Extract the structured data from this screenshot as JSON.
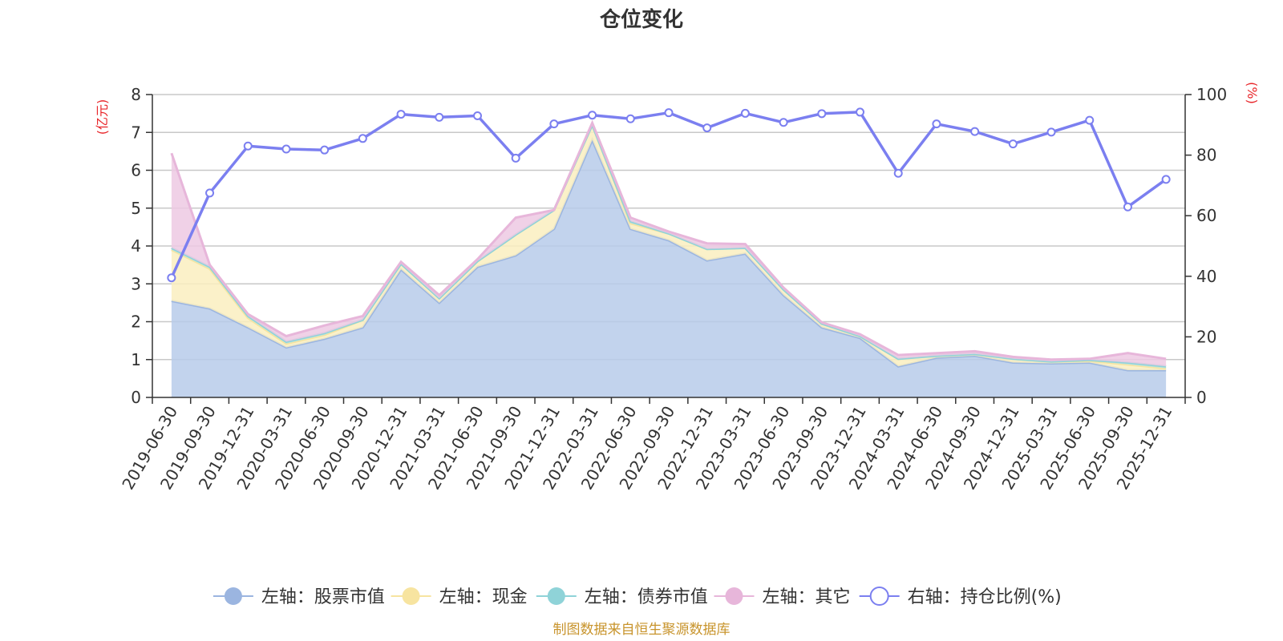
{
  "chart_data": {
    "type": "area",
    "title": "仓位变化",
    "left_axis_unit": "(亿元)",
    "right_axis_unit": "(%)",
    "left_ylim": [
      0,
      8
    ],
    "left_yticks": [
      0,
      1,
      2,
      3,
      4,
      5,
      6,
      7,
      8
    ],
    "right_ylim": [
      0,
      100
    ],
    "right_yticks": [
      0,
      20,
      40,
      60,
      80,
      100
    ],
    "categories": [
      "2019-06-30",
      "2019-09-30",
      "2019-12-31",
      "2020-03-31",
      "2020-06-30",
      "2020-09-30",
      "2020-12-31",
      "2021-03-31",
      "2021-06-30",
      "2021-09-30",
      "2021-12-31",
      "2022-03-31",
      "2022-06-30",
      "2022-09-30",
      "2022-12-31",
      "2023-03-31",
      "2023-06-30",
      "2023-09-30",
      "2023-12-31",
      "2024-03-31",
      "2024-06-30",
      "2024-09-30",
      "2024-12-31",
      "2025-03-31",
      "2025-06-30",
      "2025-09-30",
      "2025-12-31"
    ],
    "series": [
      {
        "name": "左轴：股票市值",
        "axis": "left",
        "kind": "area",
        "color": "#9bb5e0",
        "fill": "#b7cbea",
        "values": [
          2.55,
          2.35,
          1.85,
          1.32,
          1.55,
          1.85,
          3.38,
          2.5,
          3.45,
          3.75,
          4.45,
          6.8,
          4.45,
          4.15,
          3.62,
          3.8,
          2.7,
          1.85,
          1.57,
          0.82,
          1.05,
          1.1,
          0.92,
          0.9,
          0.92,
          0.72,
          0.72
        ]
      },
      {
        "name": "左轴：现金",
        "axis": "left",
        "kind": "area",
        "color": "#f7e4a0",
        "fill": "#faefc0",
        "values": [
          1.35,
          1.05,
          0.25,
          0.1,
          0.1,
          0.2,
          0.15,
          0.12,
          0.15,
          0.55,
          0.5,
          0.4,
          0.15,
          0.18,
          0.3,
          0.15,
          0.15,
          0.1,
          0.05,
          0.2,
          0.05,
          0.05,
          0.1,
          0.05,
          0.05,
          0.15,
          0.05
        ]
      },
      {
        "name": "左轴：债券市值",
        "axis": "left",
        "kind": "area",
        "color": "#8fd3d8",
        "fill": "#b8e5e8",
        "values": [
          0.05,
          0.05,
          0.05,
          0.05,
          0.05,
          0.0,
          0.0,
          0.0,
          0.0,
          0.0,
          0.0,
          0.0,
          0.05,
          0.0,
          0.0,
          0.0,
          0.0,
          0.0,
          0.0,
          0.0,
          0.0,
          0.0,
          0.0,
          0.0,
          0.02,
          0.05,
          0.05
        ]
      },
      {
        "name": "左轴：其它",
        "axis": "left",
        "kind": "area",
        "color": "#e7b6da",
        "fill": "#edc9e3",
        "values": [
          2.5,
          0.05,
          0.05,
          0.15,
          0.2,
          0.1,
          0.05,
          0.08,
          0.05,
          0.45,
          0.0,
          0.05,
          0.1,
          0.05,
          0.15,
          0.1,
          0.05,
          0.03,
          0.05,
          0.1,
          0.07,
          0.07,
          0.05,
          0.05,
          0.03,
          0.25,
          0.2
        ]
      },
      {
        "name": "右轴：持仓比例(%)",
        "axis": "right",
        "kind": "line",
        "color": "#7b7ff0",
        "values": [
          39.5,
          67.5,
          83,
          82,
          81.7,
          85.5,
          93.5,
          92.5,
          93,
          79,
          90.3,
          93.2,
          92,
          94,
          89,
          93.8,
          90.8,
          93.7,
          94.2,
          74,
          90.3,
          87.8,
          83.7,
          87.6,
          91.5,
          62.9,
          72
        ]
      }
    ],
    "source_note": "制图数据来自恒生聚源数据库"
  }
}
